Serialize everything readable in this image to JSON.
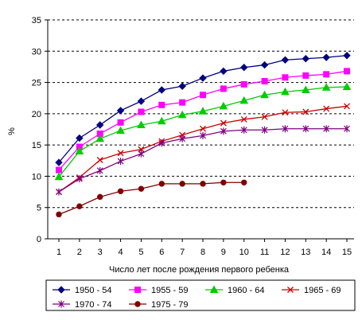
{
  "chart_data": {
    "type": "line",
    "title": "",
    "xlabel": "Число лет после рождения первого ребенка",
    "ylabel": "%",
    "x": [
      1,
      2,
      3,
      4,
      5,
      6,
      7,
      8,
      9,
      10,
      11,
      12,
      13,
      14,
      15
    ],
    "x_ticks": [
      "1",
      "2",
      "3",
      "4",
      "5",
      "6",
      "7",
      "8",
      "9",
      "10",
      "11",
      "12",
      "13",
      "14",
      "15"
    ],
    "ylim": [
      0,
      35
    ],
    "y_ticks": [
      "0",
      "5",
      "10",
      "15",
      "20",
      "25",
      "30",
      "35"
    ],
    "grid": "horizontal dashed",
    "legend_position": "bottom",
    "series": [
      {
        "name": "1950 - 54",
        "color": "#000080",
        "marker": "diamond",
        "values": [
          12.2,
          16.1,
          18.2,
          20.5,
          22.0,
          23.8,
          24.4,
          25.7,
          26.8,
          27.4,
          27.8,
          28.6,
          28.8,
          29.0,
          29.3
        ]
      },
      {
        "name": "1955 - 59",
        "color": "#ff00ff",
        "marker": "square",
        "values": [
          11.0,
          14.7,
          16.8,
          18.6,
          20.3,
          21.4,
          21.8,
          23.0,
          24.0,
          24.7,
          25.2,
          25.8,
          26.1,
          26.3,
          26.8
        ]
      },
      {
        "name": "1960 - 64",
        "color": "#00cc00",
        "marker": "triangle",
        "values": [
          9.9,
          14.0,
          16.0,
          17.3,
          18.2,
          18.8,
          19.8,
          20.4,
          21.2,
          22.1,
          23.0,
          23.5,
          23.8,
          24.2,
          24.3
        ]
      },
      {
        "name": "1965 - 69",
        "color": "#cc0000",
        "marker": "x",
        "values": [
          7.5,
          9.8,
          12.6,
          13.7,
          14.3,
          15.6,
          16.6,
          17.6,
          18.5,
          19.1,
          19.5,
          20.2,
          20.3,
          20.8,
          21.2
        ]
      },
      {
        "name": "1970 - 74",
        "color": "#800080",
        "marker": "star",
        "values": [
          7.5,
          9.6,
          10.9,
          12.4,
          13.6,
          15.3,
          16.0,
          16.5,
          17.2,
          17.4,
          17.4,
          17.6,
          17.6,
          17.6,
          17.6
        ]
      },
      {
        "name": "1975 - 79",
        "color": "#800000",
        "marker": "circle",
        "values": [
          3.9,
          5.2,
          6.7,
          7.6,
          8.0,
          8.8,
          8.8,
          8.8,
          9.0,
          9.0,
          null,
          null,
          null,
          null,
          null
        ]
      }
    ]
  }
}
